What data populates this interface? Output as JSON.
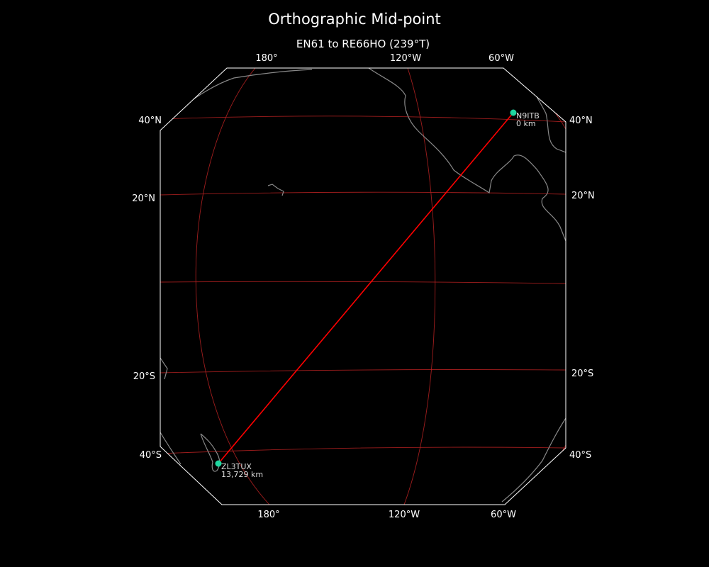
{
  "title": "Orthographic Mid-point",
  "subtitle": "EN61 to RE66HO (239°T)",
  "projection": "orthographic",
  "colors": {
    "background": "#000000",
    "gridlines": "#bb2222",
    "path": "#ff0000",
    "station": "#1fd6a0",
    "coastline": "#888888",
    "border": "#ffffff"
  },
  "ticks": {
    "top": [
      "180°",
      "120°W",
      "60°W"
    ],
    "bottom": [
      "180°",
      "120°W",
      "60°W"
    ],
    "left": [
      "40°N",
      "20°N",
      "20°S",
      "40°S"
    ],
    "right": [
      "40°N",
      "20°N",
      "20°S",
      "40°S"
    ]
  },
  "stations": [
    {
      "call": "N9ITB",
      "distance": "0 km",
      "lat": 41.5,
      "lon": -87.5
    },
    {
      "call": "ZL3TUX",
      "distance": "13,729 km",
      "lat": -43.5,
      "lon": 172.5
    }
  ]
}
